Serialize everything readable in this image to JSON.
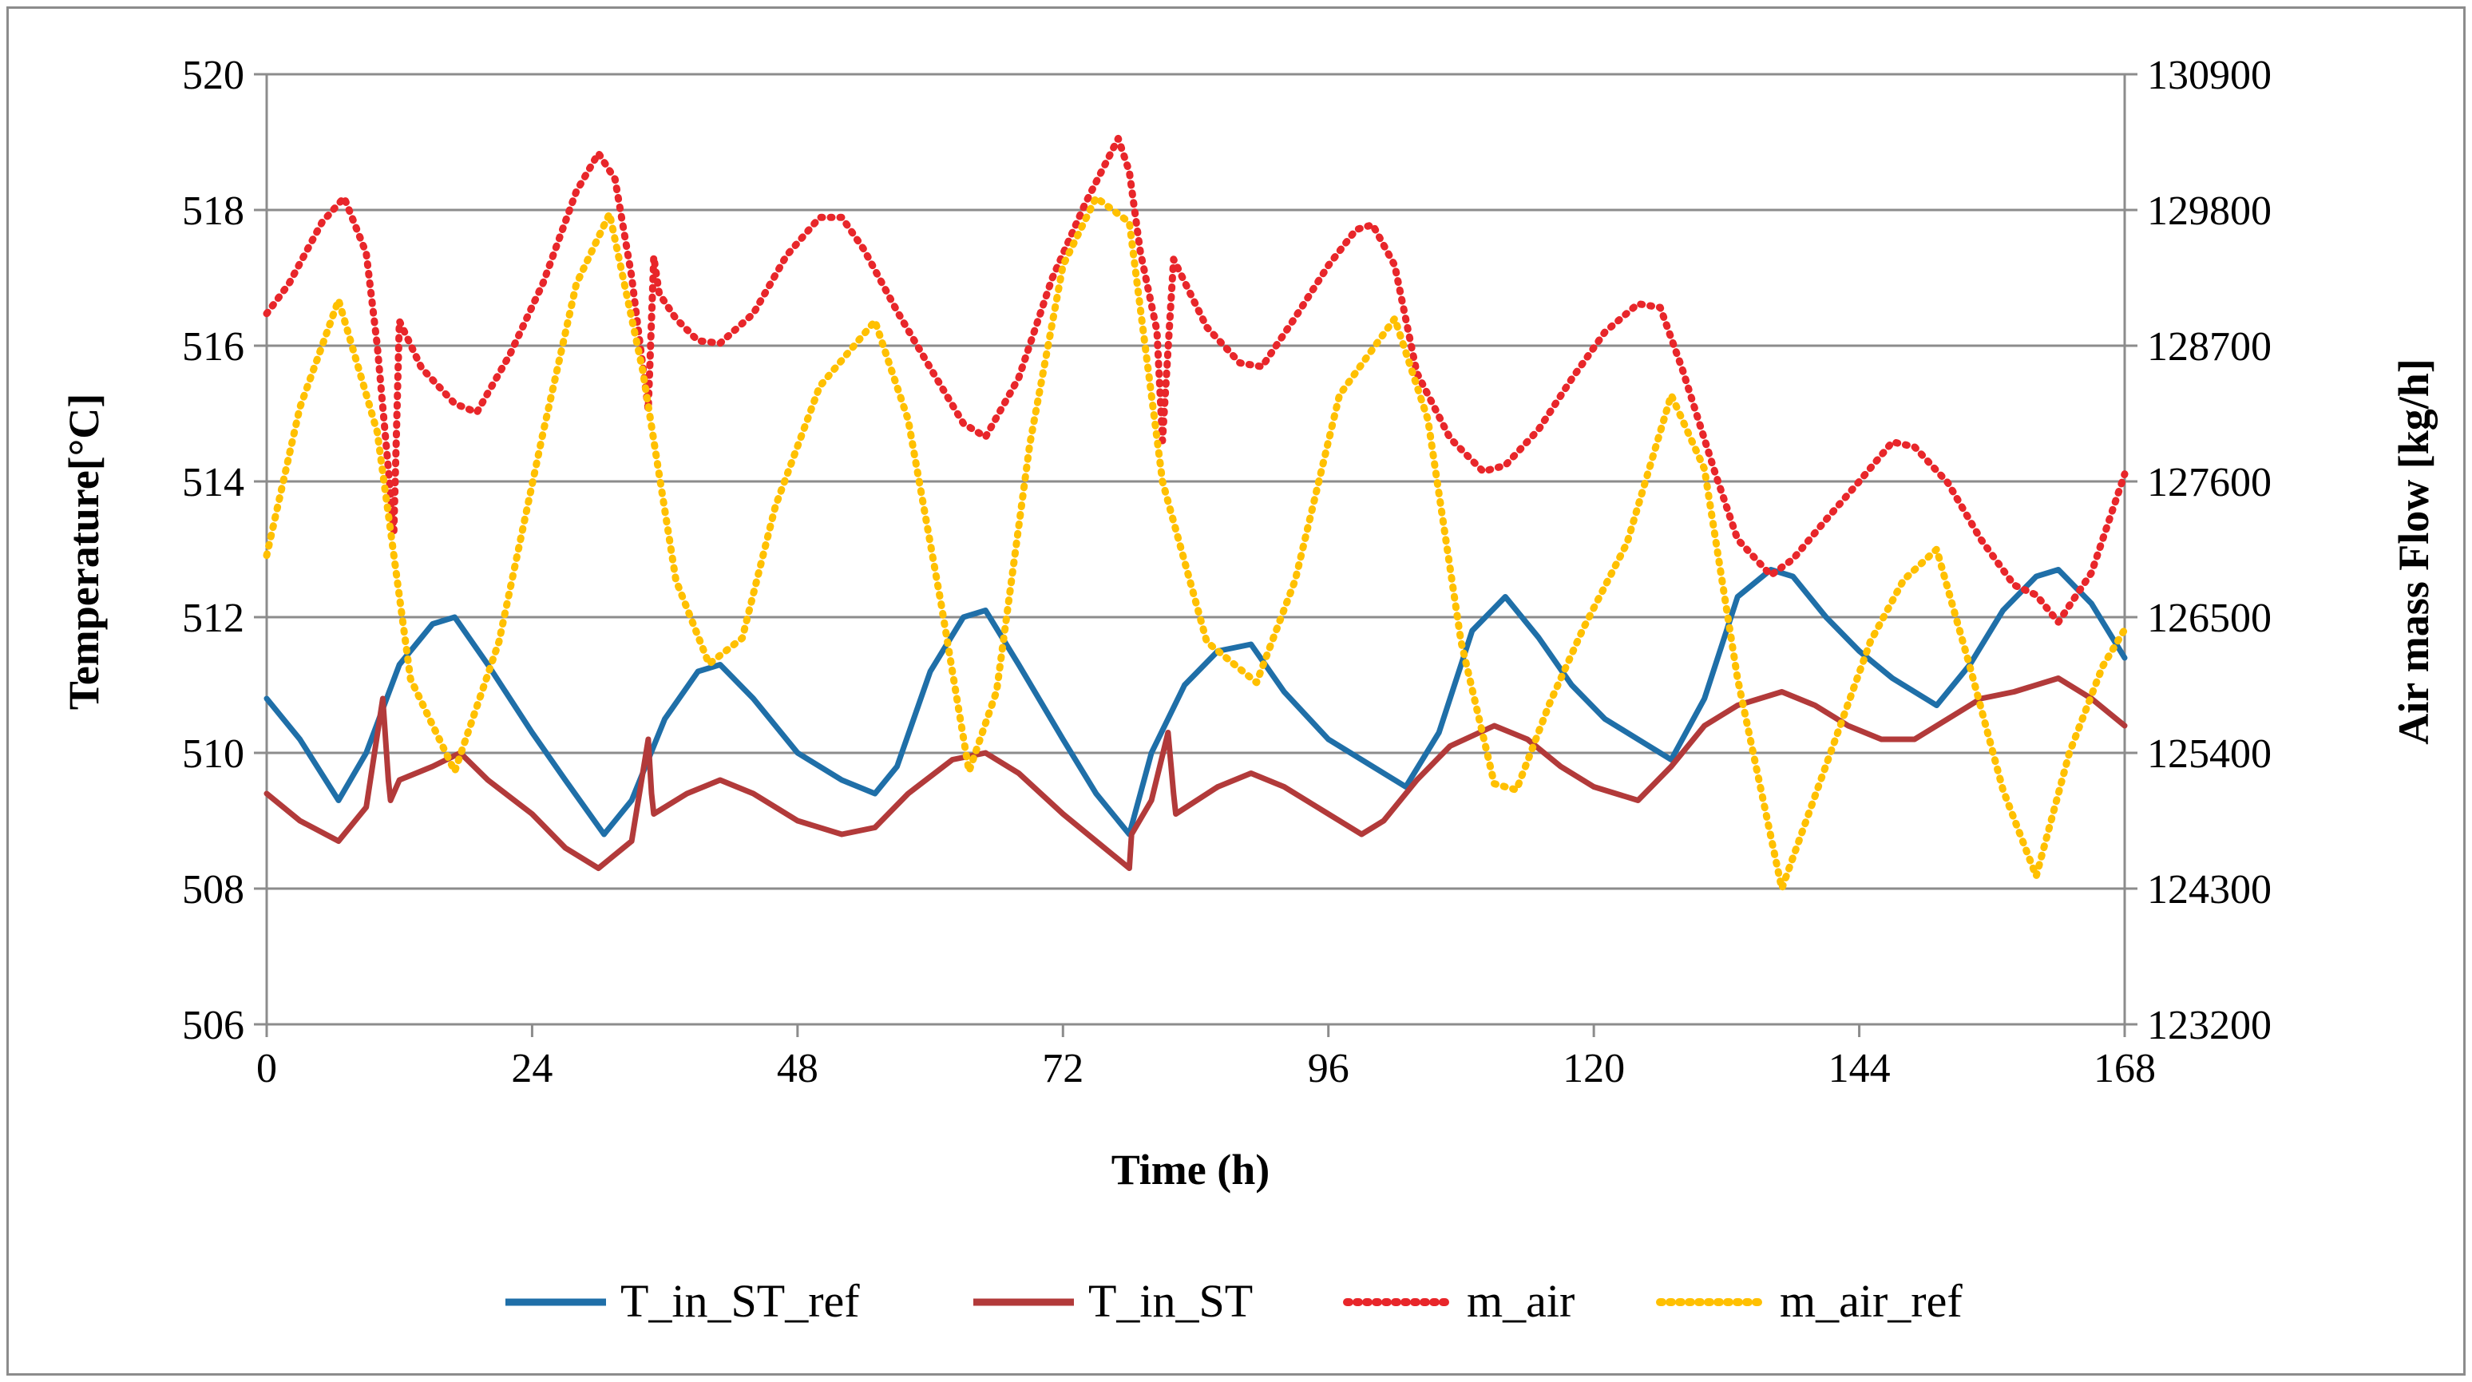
{
  "chart_data": {
    "type": "line",
    "title": "",
    "xlabel": "Time (h)",
    "ylabel": "Temperature[°C]",
    "y2label": "Air mass Flow [kg/h]",
    "xlim": [
      0,
      168
    ],
    "ylim": [
      506,
      520
    ],
    "y2lim": [
      123200,
      130900
    ],
    "x_ticks": [
      0,
      24,
      48,
      72,
      96,
      120,
      144,
      168
    ],
    "y_ticks": [
      506,
      508,
      510,
      512,
      514,
      516,
      518,
      520
    ],
    "y2_ticks": [
      123200,
      124300,
      125400,
      126500,
      127600,
      128700,
      129800,
      130900
    ],
    "grid": "horizontal",
    "legend_position": "bottom",
    "series": [
      {
        "name": "T_in_ST_ref",
        "axis": "left",
        "color": "#1f6fa8",
        "style": "solid",
        "x": [
          0,
          3,
          6.5,
          9,
          12,
          15,
          17,
          20,
          24,
          27,
          30.5,
          33,
          36,
          39,
          41,
          44,
          48,
          52,
          55,
          57,
          60,
          63,
          65,
          68,
          72,
          75,
          78,
          80,
          83,
          86,
          89,
          92,
          96,
          100,
          103,
          106,
          109,
          112,
          115,
          118,
          121,
          124,
          127,
          130,
          133,
          136,
          138,
          141,
          144,
          147,
          151,
          154,
          157,
          160,
          162,
          165,
          168
        ],
        "y": [
          510.8,
          510.2,
          509.3,
          510.0,
          511.3,
          511.9,
          512.0,
          511.3,
          510.3,
          509.6,
          508.8,
          509.3,
          510.5,
          511.2,
          511.3,
          510.8,
          510.0,
          509.6,
          509.4,
          509.8,
          511.2,
          512.0,
          512.1,
          511.3,
          510.2,
          509.4,
          508.8,
          510.0,
          511.0,
          511.5,
          511.6,
          510.9,
          510.2,
          509.8,
          509.5,
          510.3,
          511.8,
          512.3,
          511.7,
          511.0,
          510.5,
          510.2,
          509.9,
          510.8,
          512.3,
          512.7,
          512.6,
          512.0,
          511.5,
          511.1,
          510.7,
          511.3,
          512.1,
          512.6,
          512.7,
          512.2,
          511.4
        ]
      },
      {
        "name": "T_in_ST",
        "axis": "left",
        "color": "#b23a3a",
        "style": "solid",
        "x": [
          0,
          3,
          6.5,
          9,
          10.5,
          11,
          11.2,
          12,
          15,
          17.5,
          20,
          24,
          27,
          30,
          33,
          34.5,
          34.8,
          35,
          38,
          41,
          44,
          48,
          52,
          55,
          58,
          62,
          65,
          68,
          72,
          75,
          78,
          78.2,
          80,
          81.5,
          82,
          82.2,
          86,
          89,
          92,
          96,
          99,
          101,
          104,
          107,
          111,
          114,
          117,
          120,
          124,
          127,
          130,
          133,
          137,
          140,
          143,
          146,
          149,
          152,
          155,
          158,
          162,
          165,
          168
        ],
        "y": [
          509.4,
          509.0,
          508.7,
          509.2,
          510.8,
          509.6,
          509.3,
          509.6,
          509.8,
          510.0,
          509.6,
          509.1,
          508.6,
          508.3,
          508.7,
          510.2,
          509.4,
          509.1,
          509.4,
          509.6,
          509.4,
          509.0,
          508.8,
          508.9,
          509.4,
          509.9,
          510.0,
          509.7,
          509.1,
          508.7,
          508.3,
          508.8,
          509.3,
          510.3,
          509.4,
          509.1,
          509.5,
          509.7,
          509.5,
          509.1,
          508.8,
          509.0,
          509.6,
          510.1,
          510.4,
          510.2,
          509.8,
          509.5,
          509.3,
          509.8,
          510.4,
          510.7,
          510.9,
          510.7,
          510.4,
          510.2,
          510.2,
          510.5,
          510.8,
          510.9,
          511.1,
          510.8,
          510.4
        ]
      },
      {
        "name": "m_air",
        "axis": "right",
        "color": "#e8262a",
        "style": "dotted",
        "x": [
          0,
          2,
          5,
          7,
          9,
          10,
          11,
          11.5,
          12,
          14,
          17,
          19,
          22,
          25,
          28,
          30,
          31.5,
          33,
          34.5,
          35,
          35.5,
          37,
          39,
          41,
          44,
          47,
          50,
          52,
          54,
          57,
          60,
          63,
          65,
          68,
          71,
          74,
          77,
          78,
          79,
          80.5,
          81,
          82,
          85,
          88,
          90,
          93,
          96,
          98.5,
          100,
          102,
          104,
          107,
          110,
          112,
          115,
          118,
          121,
          124,
          126,
          128,
          131,
          133,
          136,
          138,
          141,
          144,
          147,
          149,
          152,
          155,
          158,
          160,
          162,
          165,
          168
        ],
        "y": [
          128960,
          129200,
          129700,
          129900,
          129450,
          128700,
          127700,
          127200,
          128900,
          128520,
          128230,
          128160,
          128630,
          129210,
          129950,
          130260,
          130050,
          129260,
          128180,
          129420,
          129120,
          128920,
          128740,
          128720,
          128960,
          129430,
          129740,
          129740,
          129480,
          128980,
          128520,
          128070,
          127960,
          128440,
          129240,
          129850,
          130380,
          130110,
          129460,
          128820,
          127930,
          129400,
          128850,
          128560,
          128530,
          128930,
          129350,
          129640,
          129680,
          129350,
          128480,
          127950,
          127680,
          127730,
          128020,
          128430,
          128810,
          129040,
          129010,
          128510,
          127660,
          127130,
          126840,
          126970,
          127290,
          127600,
          127920,
          127880,
          127590,
          127130,
          126760,
          126680,
          126460,
          126860,
          127660
        ]
      },
      {
        "name": "m_air_ref",
        "axis": "right",
        "color": "#ffc000",
        "style": "dotted",
        "x": [
          0,
          3,
          6.5,
          10,
          13,
          17,
          21,
          25,
          28,
          31,
          34,
          37,
          40,
          43,
          46,
          50,
          55,
          58,
          61,
          63.5,
          66,
          69,
          72,
          75,
          78,
          81,
          85,
          89.5,
          93,
          97,
          102,
          105,
          108,
          111,
          113,
          116,
          119,
          123,
          127,
          130,
          133,
          137,
          141,
          145,
          148,
          151,
          154,
          157,
          160,
          163,
          166,
          168
        ],
        "y": [
          127000,
          128200,
          129070,
          128000,
          126000,
          125250,
          126300,
          128000,
          129200,
          129770,
          128500,
          126800,
          126120,
          126330,
          127400,
          128370,
          128900,
          128100,
          126600,
          125250,
          125900,
          127900,
          129350,
          129900,
          129700,
          127600,
          126300,
          125970,
          126800,
          128300,
          128920,
          128100,
          126300,
          125150,
          125100,
          125800,
          126400,
          127100,
          128300,
          127700,
          126000,
          124300,
          125300,
          126300,
          126800,
          127050,
          126100,
          125100,
          124400,
          125400,
          126100,
          126400
        ]
      }
    ]
  }
}
